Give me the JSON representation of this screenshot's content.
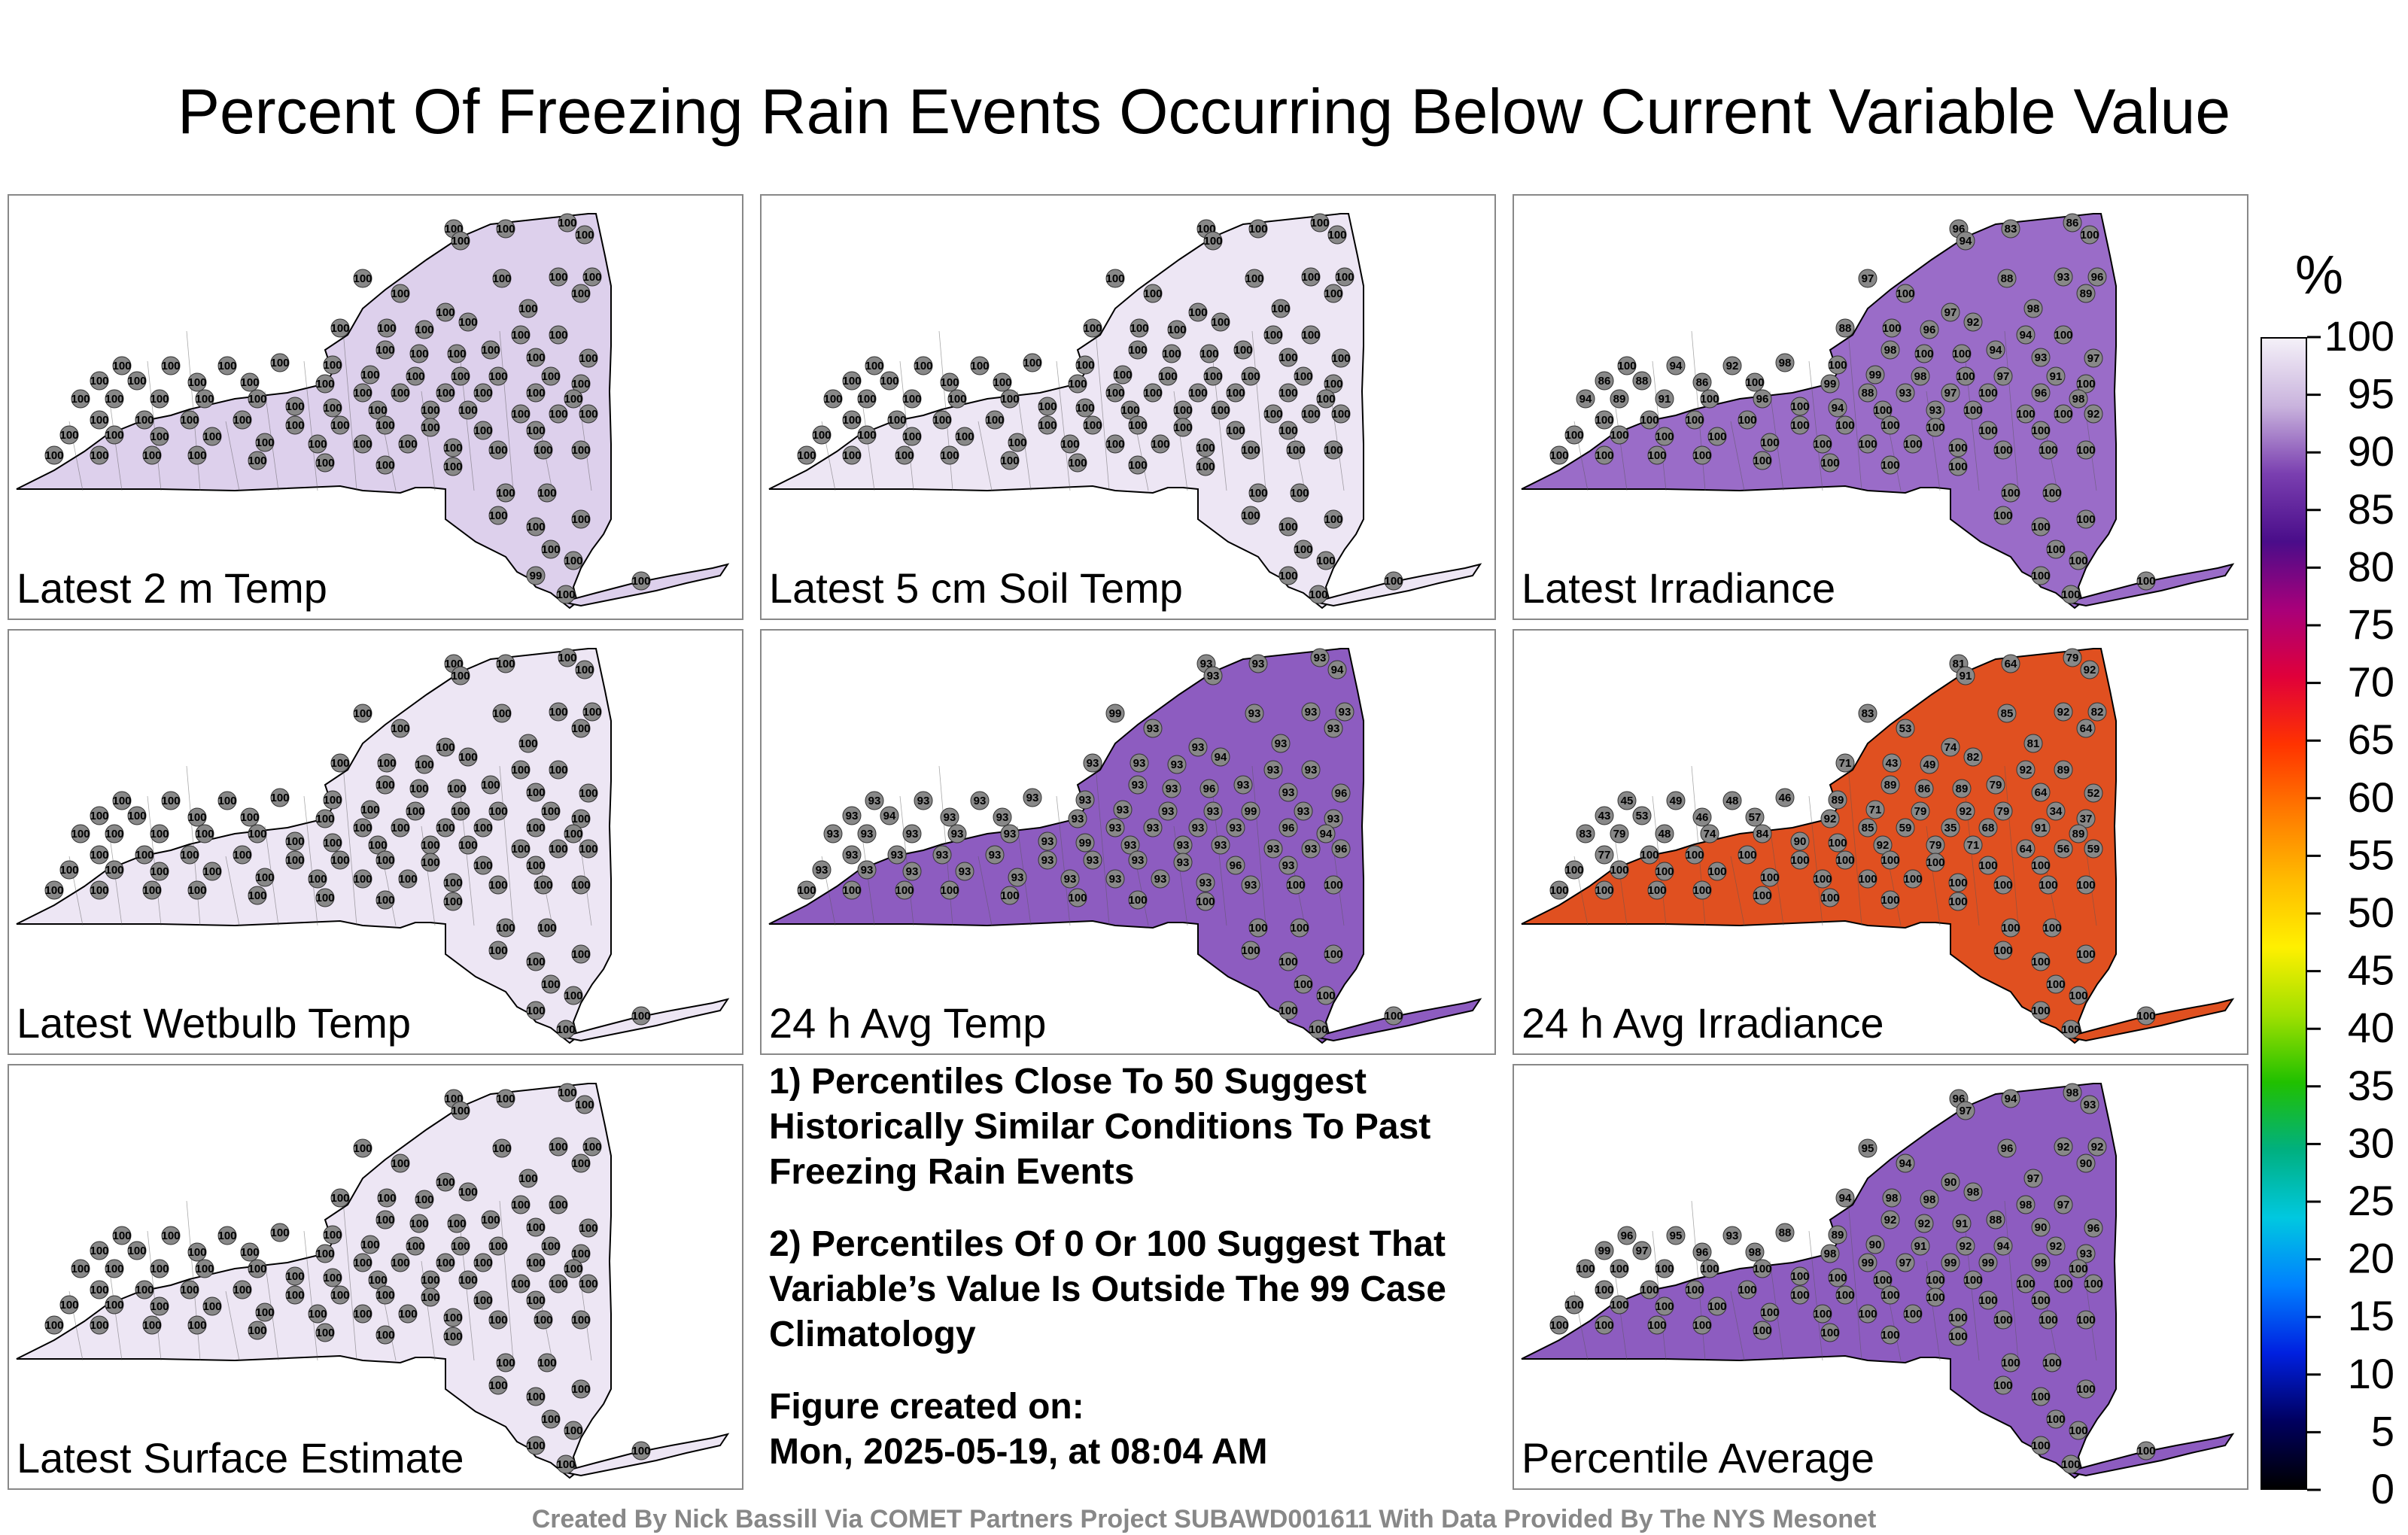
{
  "title": "Percent Of Freezing Rain Events Occurring Below Current Variable Value",
  "colorbar": {
    "unit": "%",
    "ticks": [
      "100",
      "95",
      "90",
      "85",
      "80",
      "75",
      "70",
      "65",
      "60",
      "55",
      "50",
      "45",
      "40",
      "35",
      "30",
      "25",
      "20",
      "15",
      "10",
      "5",
      "0"
    ],
    "stops": [
      "#f4f0f8",
      "#c9b3dd",
      "#7a3fb0",
      "#4a0d8a",
      "#a8007a",
      "#e0003a",
      "#ff3300",
      "#ff7a00",
      "#ffbb00",
      "#fff000",
      "#a0e000",
      "#20c000",
      "#00b080",
      "#00c8e0",
      "#0080ff",
      "#0020e0",
      "#000060",
      "#000000"
    ]
  },
  "panels": [
    {
      "label": "Latest 2 m Temp",
      "fill": "#ddd0ec",
      "values": [
        "100",
        "100",
        "100",
        "100",
        "100",
        "100",
        "100",
        "100",
        "100",
        "100",
        "100",
        "100",
        "100",
        "100",
        "100",
        "100",
        "100",
        "100",
        "100",
        "100",
        "100",
        "100",
        "100",
        "100",
        "100",
        "100",
        "100",
        "100",
        "100",
        "100",
        "100",
        "100",
        "100",
        "100",
        "100",
        "100",
        "100",
        "100",
        "100",
        "100",
        "100",
        "100",
        "100",
        "100",
        "100",
        "100",
        "100",
        "100",
        "100",
        "100",
        "100",
        "100",
        "100",
        "100",
        "100",
        "100",
        "100",
        "100",
        "100",
        "100",
        "100",
        "100",
        "100",
        "100",
        "100",
        "100",
        "100",
        "100",
        "100",
        "100",
        "100",
        "100",
        "100",
        "100",
        "100",
        "100",
        "100",
        "100",
        "100",
        "100",
        "100",
        "100",
        "100",
        "100",
        "100",
        "100",
        "100",
        "100",
        "100",
        "100",
        "100",
        "100",
        "100",
        "100",
        "100",
        "100",
        "100",
        "99",
        "100",
        "100"
      ]
    },
    {
      "label": "Latest 5 cm Soil Temp",
      "fill": "#ede6f4",
      "values": [
        "100",
        "100",
        "100",
        "100",
        "100",
        "100",
        "100",
        "100",
        "100",
        "100",
        "100",
        "100",
        "100",
        "100",
        "100",
        "100",
        "100",
        "100",
        "100",
        "100",
        "100",
        "100",
        "100",
        "100",
        "100",
        "100",
        "100",
        "100",
        "100",
        "100",
        "100",
        "100",
        "100",
        "100",
        "100",
        "100",
        "100",
        "100",
        "100",
        "100",
        "100",
        "100",
        "100",
        "100",
        "100",
        "100",
        "100",
        "100",
        "100",
        "100",
        "100",
        "100",
        "100",
        "100",
        "100",
        "100",
        "100",
        "100",
        "100",
        "100",
        "100",
        "100",
        "100",
        "100",
        "100",
        "100",
        "100",
        "100",
        "100",
        "100",
        "100",
        "100",
        "100",
        "100",
        "100",
        "100",
        "100",
        "100",
        "100",
        "100",
        "100",
        "100",
        "100",
        "100",
        "100",
        "100",
        "100",
        "100",
        "100",
        "100",
        "100",
        "100",
        "100",
        "100",
        "100",
        "100",
        "100",
        "100",
        "100",
        "100"
      ]
    },
    {
      "label": "Latest Irradiance",
      "fill": "#9a6cc8",
      "values": [
        "96",
        "83",
        "86",
        "100",
        "94",
        "97",
        "88",
        "93",
        "96",
        "100",
        "97",
        "98",
        "89",
        "88",
        "100",
        "96",
        "92",
        "94",
        "100",
        "98",
        "100",
        "100",
        "94",
        "93",
        "97",
        "100",
        "94",
        "92",
        "98",
        "100",
        "99",
        "98",
        "100",
        "97",
        "91",
        "100",
        "86",
        "88",
        "86",
        "100",
        "99",
        "88",
        "93",
        "97",
        "100",
        "96",
        "98",
        "94",
        "89",
        "91",
        "100",
        "96",
        "100",
        "94",
        "100",
        "93",
        "100",
        "100",
        "100",
        "92",
        "100",
        "100",
        "100",
        "100",
        "100",
        "100",
        "100",
        "100",
        "100",
        "100",
        "100",
        "100",
        "100",
        "100",
        "100",
        "100",
        "100",
        "100",
        "100",
        "100",
        "100",
        "100",
        "100",
        "100",
        "100",
        "100",
        "100",
        "100",
        "100",
        "100",
        "100",
        "100",
        "100",
        "100",
        "100",
        "100",
        "100",
        "100",
        "100",
        "100"
      ]
    },
    {
      "label": "Latest Wetbulb Temp",
      "fill": "#ede6f4",
      "values": [
        "100",
        "100",
        "100",
        "100",
        "100",
        "100",
        "100",
        "100",
        "100",
        "100",
        "100",
        "100",
        "100",
        "100",
        "100",
        "100",
        "100",
        "100",
        "100",
        "100",
        "100",
        "100",
        "100",
        "100",
        "100",
        "100",
        "100",
        "100",
        "100",
        "100",
        "100",
        "100",
        "100",
        "100",
        "100",
        "100",
        "100",
        "100",
        "100",
        "100",
        "100",
        "100",
        "100",
        "100",
        "100",
        "100",
        "100",
        "100",
        "100",
        "100",
        "100",
        "100",
        "100",
        "100",
        "100",
        "100",
        "100",
        "100",
        "100",
        "100",
        "100",
        "100",
        "100",
        "100",
        "100",
        "100",
        "100",
        "100",
        "100",
        "100",
        "100",
        "100",
        "100",
        "100",
        "100",
        "100",
        "100",
        "100",
        "100",
        "100",
        "100",
        "100",
        "100",
        "100",
        "100",
        "100",
        "100",
        "100",
        "100",
        "100",
        "100",
        "100",
        "100",
        "100",
        "100",
        "100",
        "100",
        "100",
        "100",
        "100"
      ]
    },
    {
      "label": "24 h Avg Temp",
      "fill": "#8d5cc0",
      "values": [
        "93",
        "93",
        "93",
        "94",
        "93",
        "99",
        "93",
        "93",
        "93",
        "93",
        "93",
        "93",
        "93",
        "93",
        "93",
        "93",
        "94",
        "93",
        "93",
        "93",
        "93",
        "96",
        "93",
        "93",
        "96",
        "93",
        "93",
        "93",
        "93",
        "93",
        "93",
        "93",
        "93",
        "99",
        "93",
        "93",
        "93",
        "94",
        "93",
        "93",
        "93",
        "93",
        "93",
        "93",
        "93",
        "96",
        "94",
        "93",
        "93",
        "93",
        "93",
        "93",
        "93",
        "99",
        "93",
        "93",
        "93",
        "93",
        "93",
        "96",
        "93",
        "93",
        "93",
        "93",
        "93",
        "93",
        "93",
        "93",
        "96",
        "93",
        "93",
        "93",
        "93",
        "93",
        "93",
        "93",
        "93",
        "93",
        "93",
        "93",
        "100",
        "100",
        "100",
        "100",
        "100",
        "100",
        "100",
        "100",
        "100",
        "100",
        "100",
        "100",
        "100",
        "100",
        "100",
        "100",
        "100",
        "100",
        "100",
        "100"
      ]
    },
    {
      "label": "24 h Avg Irradiance",
      "fill": "#e05020",
      "values": [
        "81",
        "64",
        "79",
        "92",
        "91",
        "83",
        "85",
        "92",
        "82",
        "53",
        "74",
        "81",
        "64",
        "71",
        "43",
        "49",
        "82",
        "92",
        "89",
        "89",
        "86",
        "89",
        "79",
        "64",
        "52",
        "45",
        "49",
        "48",
        "46",
        "89",
        "71",
        "79",
        "92",
        "79",
        "34",
        "37",
        "43",
        "53",
        "46",
        "57",
        "92",
        "85",
        "59",
        "35",
        "68",
        "91",
        "89",
        "83",
        "79",
        "48",
        "74",
        "84",
        "90",
        "100",
        "92",
        "79",
        "71",
        "64",
        "56",
        "59",
        "77",
        "100",
        "100",
        "100",
        "100",
        "100",
        "100",
        "100",
        "100",
        "100",
        "100",
        "100",
        "100",
        "100",
        "100",
        "100",
        "100",
        "100",
        "100",
        "100",
        "100",
        "100",
        "100",
        "100",
        "100",
        "100",
        "100",
        "100",
        "100",
        "100",
        "100",
        "100",
        "100",
        "100",
        "100",
        "100",
        "100",
        "100",
        "100",
        "100"
      ]
    },
    {
      "label": "Latest Surface Estimate",
      "fill": "#ede6f4",
      "values": [
        "100",
        "100",
        "100",
        "100",
        "100",
        "100",
        "100",
        "100",
        "100",
        "100",
        "100",
        "100",
        "100",
        "100",
        "100",
        "100",
        "100",
        "100",
        "100",
        "100",
        "100",
        "100",
        "100",
        "100",
        "100",
        "100",
        "100",
        "100",
        "100",
        "100",
        "100",
        "100",
        "100",
        "100",
        "100",
        "100",
        "100",
        "100",
        "100",
        "100",
        "100",
        "100",
        "100",
        "100",
        "100",
        "100",
        "100",
        "100",
        "100",
        "100",
        "100",
        "100",
        "100",
        "100",
        "100",
        "100",
        "100",
        "100",
        "100",
        "100",
        "100",
        "100",
        "100",
        "100",
        "100",
        "100",
        "100",
        "100",
        "100",
        "100",
        "100",
        "100",
        "100",
        "100",
        "100",
        "100",
        "100",
        "100",
        "100",
        "100",
        "100",
        "100",
        "100",
        "100",
        "100",
        "100",
        "100",
        "100",
        "100",
        "100",
        "100",
        "100",
        "100",
        "100",
        "100",
        "100",
        "100",
        "100",
        "100",
        "100"
      ]
    },
    {
      "label": "Percentile Average",
      "fill": "#8d5cc0",
      "values": [
        "96",
        "94",
        "98",
        "93",
        "97",
        "95",
        "96",
        "92",
        "92",
        "94",
        "90",
        "97",
        "90",
        "94",
        "98",
        "98",
        "98",
        "98",
        "97",
        "92",
        "92",
        "91",
        "88",
        "90",
        "96",
        "96",
        "95",
        "93",
        "88",
        "89",
        "90",
        "91",
        "92",
        "94",
        "92",
        "93",
        "99",
        "97",
        "96",
        "98",
        "98",
        "99",
        "97",
        "99",
        "99",
        "99",
        "100",
        "100",
        "100",
        "100",
        "100",
        "100",
        "100",
        "100",
        "100",
        "100",
        "100",
        "100",
        "100",
        "100",
        "100",
        "100",
        "100",
        "100",
        "100",
        "100",
        "100",
        "100",
        "100",
        "100",
        "100",
        "100",
        "100",
        "100",
        "100",
        "100",
        "100",
        "100",
        "100",
        "100",
        "100",
        "100",
        "100",
        "100",
        "100",
        "100",
        "100",
        "100",
        "100",
        "100",
        "100",
        "100",
        "100",
        "100",
        "100",
        "100",
        "100",
        "100",
        "100",
        "100"
      ]
    }
  ],
  "notes": [
    "1) Percentiles Close To 50 Suggest Historically Similar Conditions To Past Freezing Rain Events",
    "2) Percentiles Of 0 Or 100 Suggest That Variable’s Value Is Outside The 99 Case Climatology",
    "Figure created on:",
    "Mon, 2025-05-19, at 08:04 AM"
  ],
  "credits": "Created By Nick Bassill Via COMET Partners Project SUBAWD001611 With Data Provided By The NYS Mesonet"
}
